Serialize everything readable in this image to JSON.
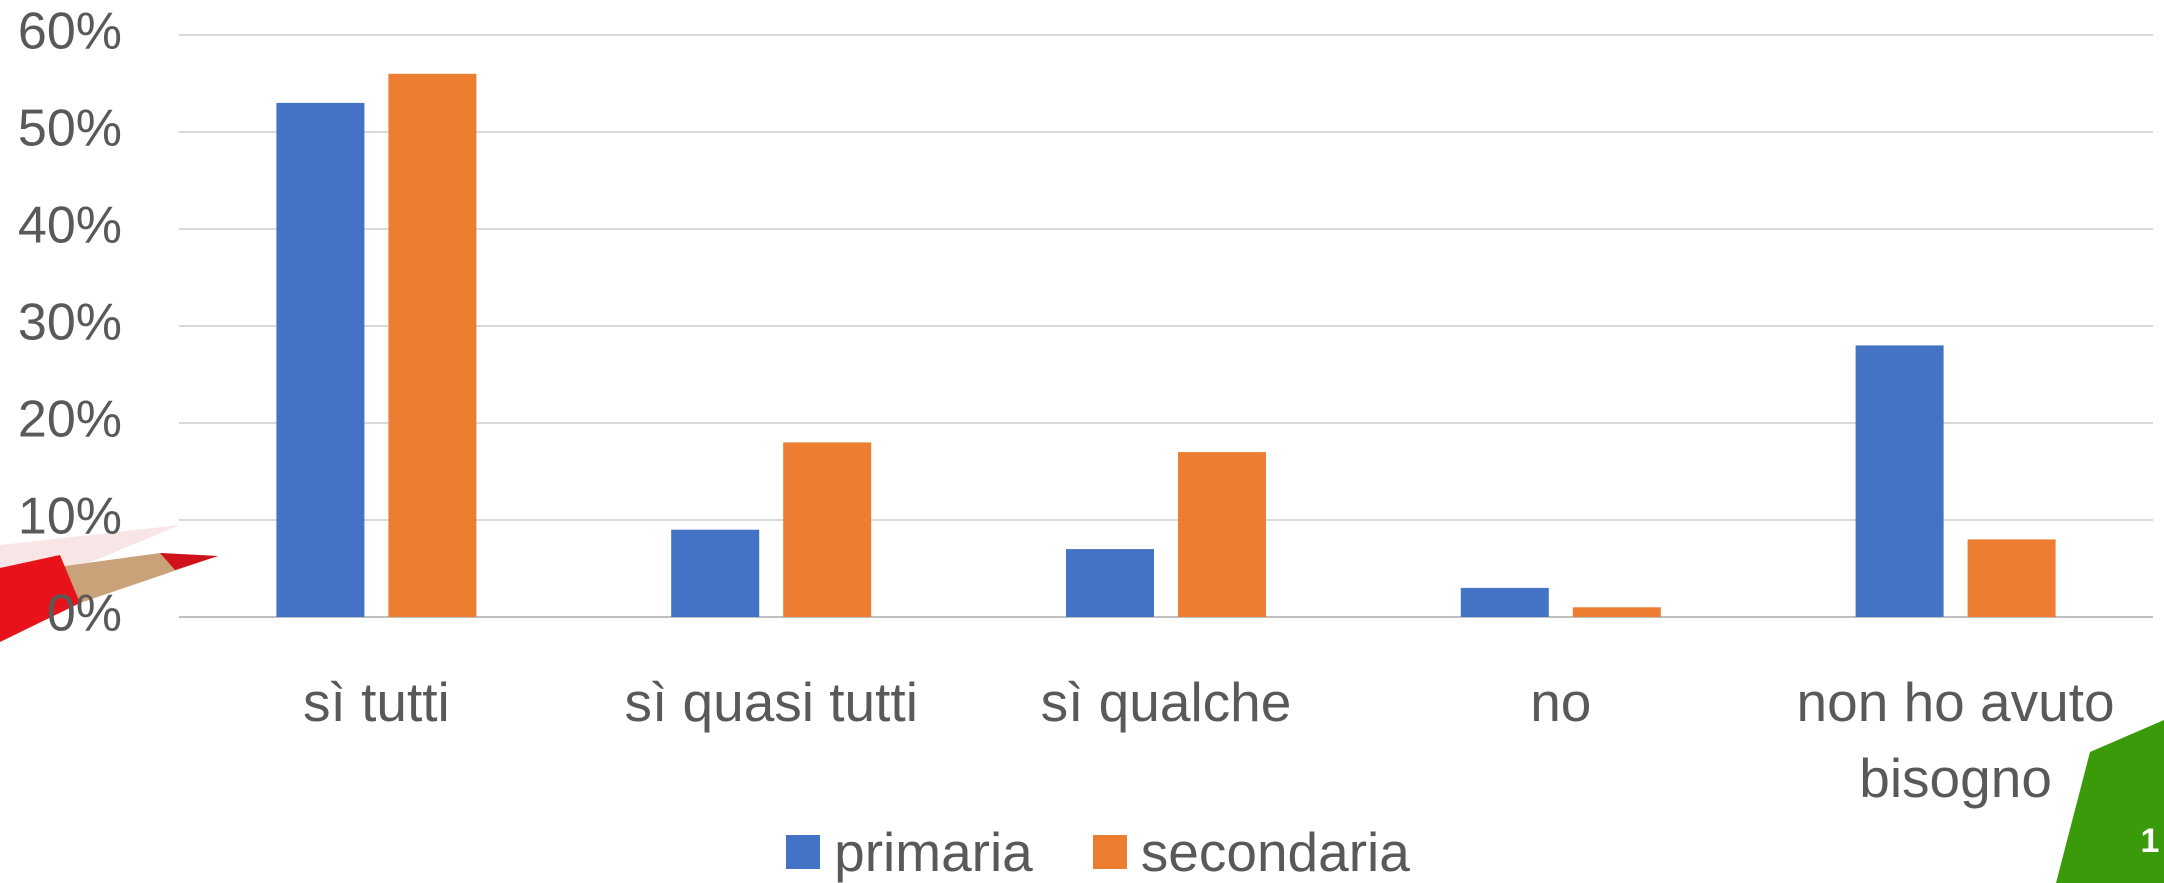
{
  "chart_data": {
    "type": "bar",
    "categories": [
      "sì tutti",
      "sì quasi tutti",
      "sì qualche",
      "no",
      "non ho avuto bisogno"
    ],
    "series": [
      {
        "name": "primaria",
        "color": "#4472c4",
        "values": [
          53,
          9,
          7,
          3,
          28
        ]
      },
      {
        "name": "secondaria",
        "color": "#ed7d31",
        "values": [
          56,
          18,
          17,
          1,
          8
        ]
      }
    ],
    "ylim": [
      0,
      60
    ],
    "yticks": [
      {
        "value": 0,
        "label": "0%"
      },
      {
        "value": 10,
        "label": "10%"
      },
      {
        "value": 20,
        "label": "20%"
      },
      {
        "value": 30,
        "label": "30%"
      },
      {
        "value": 40,
        "label": "40%"
      },
      {
        "value": 50,
        "label": "50%"
      },
      {
        "value": 60,
        "label": "60%"
      }
    ],
    "grid": true,
    "legend": "bottom"
  },
  "slide_number": "1"
}
